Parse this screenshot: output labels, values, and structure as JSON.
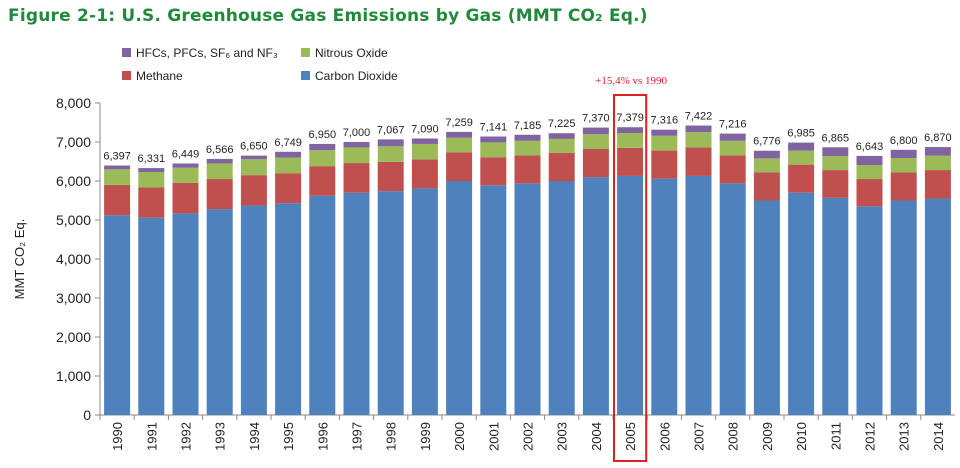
{
  "figure_title": "Figure 2-1:  U.S. Greenhouse Gas Emissions by Gas (MMT CO₂ Eq.)",
  "colors": {
    "carbon_dioxide": "#4f81bd",
    "methane": "#c0504d",
    "nitrous_oxide": "#9bbb59",
    "fluorinated": "#8064a2",
    "title": "#1f8a3c",
    "highlight": "#e02020"
  },
  "chart_data": {
    "type": "bar",
    "stacked": true,
    "title": "U.S. Greenhouse Gas Emissions by Gas (MMT CO₂ Eq.)",
    "ylabel": "MMT CO₂ Eq.",
    "xlabel": "",
    "ylim": [
      0,
      8000
    ],
    "yticks": [
      "0",
      "1,000",
      "2,000",
      "3,000",
      "4,000",
      "5,000",
      "6,000",
      "7,000",
      "8,000"
    ],
    "grid": false,
    "legend_position": "top-left",
    "categories": [
      "1990",
      "1991",
      "1992",
      "1993",
      "1994",
      "1995",
      "1996",
      "1997",
      "1998",
      "1999",
      "2000",
      "2001",
      "2002",
      "2003",
      "2004",
      "2005",
      "2006",
      "2007",
      "2008",
      "2009",
      "2010",
      "2011",
      "2012",
      "2013",
      "2014"
    ],
    "series": [
      {
        "name": "Carbon Dioxide",
        "color": "#4f81bd",
        "values": [
          5120,
          5060,
          5170,
          5280,
          5370,
          5430,
          5620,
          5700,
          5740,
          5810,
          6000,
          5890,
          5940,
          6000,
          6100,
          6130,
          6060,
          6130,
          5940,
          5500,
          5700,
          5570,
          5350,
          5500,
          5550
        ]
      },
      {
        "name": "Methane",
        "color": "#c0504d",
        "values": [
          780,
          780,
          780,
          770,
          780,
          770,
          760,
          760,
          750,
          740,
          730,
          720,
          720,
          720,
          720,
          720,
          720,
          730,
          720,
          720,
          720,
          710,
          700,
          720,
          730
        ]
      },
      {
        "name": "Nitrous Oxide",
        "color": "#9bbb59",
        "values": [
          400,
          390,
          390,
          400,
          410,
          400,
          410,
          400,
          400,
          400,
          380,
          380,
          370,
          360,
          380,
          380,
          380,
          390,
          370,
          360,
          360,
          360,
          360,
          370,
          370
        ]
      },
      {
        "name": "HFCs, PFCs, SF₆ and NF₃",
        "color": "#8064a2",
        "values": [
          97,
          101,
          109,
          116,
          90,
          149,
          160,
          140,
          177,
          140,
          149,
          151,
          155,
          145,
          170,
          149,
          156,
          172,
          186,
          196,
          205,
          225,
          233,
          210,
          220
        ]
      }
    ],
    "totals": [
      "6,397",
      "6,331",
      "6,449",
      "6,566",
      "6,650",
      "6,749",
      "6,950",
      "7,000",
      "7,067",
      "7,090",
      "7,259",
      "7,141",
      "7,185",
      "7,225",
      "7,370",
      "7,379",
      "7,316",
      "7,422",
      "7,216",
      "6,776",
      "6,985",
      "6,865",
      "6,643",
      "6,800",
      "6,870"
    ],
    "totals_values": [
      6397,
      6331,
      6449,
      6566,
      6650,
      6749,
      6950,
      7000,
      7067,
      7090,
      7259,
      7141,
      7185,
      7225,
      7370,
      7379,
      7316,
      7422,
      7216,
      6776,
      6985,
      6865,
      6643,
      6800,
      6870
    ],
    "legend": {
      "items": [
        {
          "label": "HFCs, PFCs, SF₆ and NF₃",
          "color": "#8064a2"
        },
        {
          "label": "Nitrous Oxide",
          "color": "#9bbb59"
        },
        {
          "label": "Methane",
          "color": "#c0504d"
        },
        {
          "label": "Carbon Dioxide",
          "color": "#4f81bd"
        }
      ]
    },
    "annotation": {
      "text": "+15,4% vs 1990",
      "category": "2005",
      "color": "#e02020"
    }
  }
}
